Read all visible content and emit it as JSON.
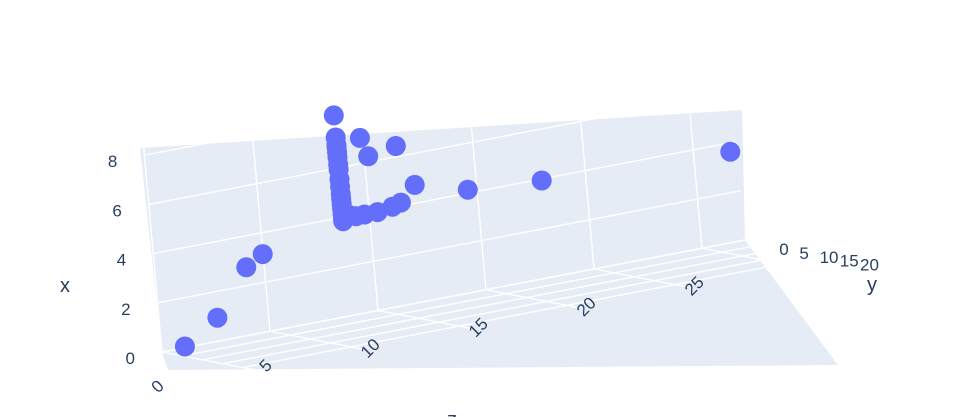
{
  "chart_data": {
    "type": "scatter3d",
    "marker_color": "#636efa",
    "pane_color": "#e5ecf6",
    "grid_color": "#ffffff",
    "grid": true,
    "axes": {
      "x": {
        "title": "x",
        "range": [
          0,
          8.5
        ],
        "ticks": [
          0,
          2,
          4,
          6,
          8
        ],
        "tick_labels": [
          "0",
          "2",
          "4",
          "6",
          "8"
        ]
      },
      "y": {
        "title": "y",
        "range": [
          0,
          23
        ],
        "ticks": [
          0,
          5,
          10,
          15,
          20
        ],
        "tick_labels": [
          "0",
          "5",
          "10",
          "15",
          "20"
        ]
      },
      "z": {
        "title": "z",
        "range": [
          0,
          27
        ],
        "ticks": [
          0,
          5,
          10,
          15,
          20,
          25
        ],
        "tick_labels": [
          "0",
          "5",
          "10",
          "15",
          "20",
          "25"
        ]
      }
    },
    "points": [
      {
        "x": 0.1,
        "y": 0.9,
        "z": 0.9
      },
      {
        "x": 1.0,
        "y": 0.9,
        "z": 2.5
      },
      {
        "x": 2.8,
        "y": 1.0,
        "z": 4.0
      },
      {
        "x": 3.2,
        "y": 1.0,
        "z": 4.8
      },
      {
        "x": 8.2,
        "y": 1.0,
        "z": 8.6
      },
      {
        "x": 7.3,
        "y": 1.0,
        "z": 8.6
      },
      {
        "x": 7.0,
        "y": 1.0,
        "z": 8.6
      },
      {
        "x": 6.9,
        "y": 1.0,
        "z": 8.6
      },
      {
        "x": 6.7,
        "y": 1.0,
        "z": 8.6
      },
      {
        "x": 6.5,
        "y": 1.0,
        "z": 8.6
      },
      {
        "x": 6.2,
        "y": 1.0,
        "z": 8.6
      },
      {
        "x": 6.0,
        "y": 1.0,
        "z": 8.6
      },
      {
        "x": 5.6,
        "y": 1.0,
        "z": 8.6
      },
      {
        "x": 5.3,
        "y": 1.0,
        "z": 8.6
      },
      {
        "x": 5.0,
        "y": 1.0,
        "z": 8.6
      },
      {
        "x": 4.8,
        "y": 1.0,
        "z": 8.6
      },
      {
        "x": 4.6,
        "y": 1.0,
        "z": 8.6
      },
      {
        "x": 4.4,
        "y": 1.0,
        "z": 8.6
      },
      {
        "x": 4.2,
        "y": 1.0,
        "z": 8.6
      },
      {
        "x": 4.0,
        "y": 1.0,
        "z": 8.6
      },
      {
        "x": 3.9,
        "y": 1.0,
        "z": 8.6
      },
      {
        "x": 4.1,
        "y": 1.0,
        "z": 8.9
      },
      {
        "x": 4.0,
        "y": 1.0,
        "z": 9.2
      },
      {
        "x": 4.0,
        "y": 1.0,
        "z": 9.6
      },
      {
        "x": 4.0,
        "y": 1.0,
        "z": 10.2
      },
      {
        "x": 4.1,
        "y": 1.0,
        "z": 10.9
      },
      {
        "x": 4.2,
        "y": 1.0,
        "z": 11.3
      },
      {
        "x": 7.1,
        "y": 1.0,
        "z": 9.7
      },
      {
        "x": 6.3,
        "y": 1.0,
        "z": 10.0
      },
      {
        "x": 6.5,
        "y": 1.0,
        "z": 11.3
      },
      {
        "x": 4.8,
        "y": 1.0,
        "z": 12.0
      },
      {
        "x": 4.2,
        "y": 1.0,
        "z": 14.4
      },
      {
        "x": 4.0,
        "y": 1.0,
        "z": 17.8
      },
      {
        "x": 3.7,
        "y": 1.0,
        "z": 26.5
      }
    ]
  }
}
